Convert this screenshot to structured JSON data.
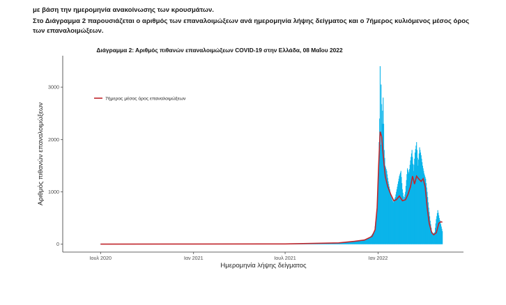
{
  "text": {
    "line1": "με βάση την ημερομηνία ανακοίνωσης των κρουσμάτων.",
    "line2_prefix": "Στο ",
    "line2_bold": "Διάγραμμα 2",
    "line2_rest": " παρουσιάζεται ο αριθμός των επαναλοιμώξεων ανά ημερομηνία λήψης δείγματος και ο 7ήμερος κυλιόμενος μέσος όρος των επαναλοιμώξεων."
  },
  "chart_data": {
    "type": "bar",
    "title": "Διάγραμμα 2: Αριθμός πιθανών επαναλοιμώξεων COVID-19 στην Ελλάδα, 08 Μαΐου 2022",
    "xlabel": "Ημερομηνία λήψης δείγματος",
    "ylabel": "Αριθμός πιθανών επαναλοιμώξεων",
    "x_ticks": [
      "Ιουλ 2020",
      "Ιαν 2021",
      "Ιουλ 2021",
      "Ιαν 2022"
    ],
    "x_range": [
      "2020-07-01",
      "2022-05-08"
    ],
    "ylim": [
      -150,
      3600
    ],
    "y_ticks": [
      0,
      1000,
      2000,
      3000
    ],
    "grid": false,
    "legend_position": "top-left",
    "bar_color": "#0ab4ea",
    "line_color": "#c0262c",
    "series": [
      {
        "name": "",
        "kind": "bar",
        "points": [
          [
            "2020-07-01",
            2
          ],
          [
            "2020-09-01",
            3
          ],
          [
            "2020-11-01",
            8
          ],
          [
            "2021-01-01",
            6
          ],
          [
            "2021-03-01",
            10
          ],
          [
            "2021-05-01",
            8
          ],
          [
            "2021-07-01",
            6
          ],
          [
            "2021-09-01",
            12
          ],
          [
            "2021-10-15",
            25
          ],
          [
            "2021-11-15",
            55
          ],
          [
            "2021-12-01",
            80
          ],
          [
            "2021-12-15",
            120
          ],
          [
            "2021-12-25",
            250
          ],
          [
            "2021-12-30",
            700
          ],
          [
            "2022-01-02",
            1500
          ],
          [
            "2022-01-04",
            2400
          ],
          [
            "2022-01-05",
            3400
          ],
          [
            "2022-01-06",
            1900
          ],
          [
            "2022-01-07",
            3050
          ],
          [
            "2022-01-09",
            2300
          ],
          [
            "2022-01-11",
            2800
          ],
          [
            "2022-01-13",
            1800
          ],
          [
            "2022-01-15",
            1500
          ],
          [
            "2022-01-18",
            1400
          ],
          [
            "2022-01-21",
            1200
          ],
          [
            "2022-01-24",
            1050
          ],
          [
            "2022-01-27",
            900
          ],
          [
            "2022-01-31",
            800
          ],
          [
            "2022-02-04",
            900
          ],
          [
            "2022-02-08",
            1100
          ],
          [
            "2022-02-12",
            1300
          ],
          [
            "2022-02-15",
            1400
          ],
          [
            "2022-02-18",
            1050
          ],
          [
            "2022-02-21",
            850
          ],
          [
            "2022-02-24",
            1000
          ],
          [
            "2022-02-28",
            1450
          ],
          [
            "2022-03-03",
            1350
          ],
          [
            "2022-03-06",
            1600
          ],
          [
            "2022-03-09",
            1800
          ],
          [
            "2022-03-12",
            1400
          ],
          [
            "2022-03-15",
            1750
          ],
          [
            "2022-03-18",
            1950
          ],
          [
            "2022-03-21",
            1500
          ],
          [
            "2022-03-24",
            1850
          ],
          [
            "2022-03-27",
            1700
          ],
          [
            "2022-03-30",
            1500
          ],
          [
            "2022-04-02",
            1350
          ],
          [
            "2022-04-05",
            1250
          ],
          [
            "2022-04-08",
            1000
          ],
          [
            "2022-04-11",
            700
          ],
          [
            "2022-04-14",
            450
          ],
          [
            "2022-04-17",
            250
          ],
          [
            "2022-04-20",
            200
          ],
          [
            "2022-04-23",
            230
          ],
          [
            "2022-04-26",
            480
          ],
          [
            "2022-04-29",
            650
          ],
          [
            "2022-05-02",
            500
          ],
          [
            "2022-05-05",
            380
          ],
          [
            "2022-05-08",
            250
          ]
        ]
      },
      {
        "name": "7ήμερος μέσος όρος επαναλοιμώξεων",
        "kind": "line",
        "points": [
          [
            "2020-07-01",
            2
          ],
          [
            "2021-01-01",
            4
          ],
          [
            "2021-07-01",
            6
          ],
          [
            "2021-10-15",
            25
          ],
          [
            "2021-11-15",
            55
          ],
          [
            "2021-12-05",
            80
          ],
          [
            "2021-12-20",
            150
          ],
          [
            "2021-12-26",
            280
          ],
          [
            "2021-12-30",
            700
          ],
          [
            "2022-01-02",
            1500
          ],
          [
            "2022-01-05",
            2150
          ],
          [
            "2022-01-08",
            2050
          ],
          [
            "2022-01-11",
            1700
          ],
          [
            "2022-01-15",
            1300
          ],
          [
            "2022-01-20",
            1100
          ],
          [
            "2022-01-26",
            950
          ],
          [
            "2022-02-01",
            830
          ],
          [
            "2022-02-06",
            850
          ],
          [
            "2022-02-12",
            920
          ],
          [
            "2022-02-18",
            830
          ],
          [
            "2022-02-24",
            850
          ],
          [
            "2022-03-01",
            950
          ],
          [
            "2022-03-06",
            1100
          ],
          [
            "2022-03-10",
            1300
          ],
          [
            "2022-03-14",
            1150
          ],
          [
            "2022-03-18",
            1300
          ],
          [
            "2022-03-22",
            1250
          ],
          [
            "2022-03-27",
            1200
          ],
          [
            "2022-03-31",
            1250
          ],
          [
            "2022-04-04",
            1100
          ],
          [
            "2022-04-08",
            700
          ],
          [
            "2022-04-12",
            400
          ],
          [
            "2022-04-17",
            220
          ],
          [
            "2022-04-21",
            180
          ],
          [
            "2022-04-26",
            220
          ],
          [
            "2022-05-01",
            400
          ],
          [
            "2022-05-05",
            430
          ],
          [
            "2022-05-08",
            420
          ]
        ]
      }
    ]
  }
}
